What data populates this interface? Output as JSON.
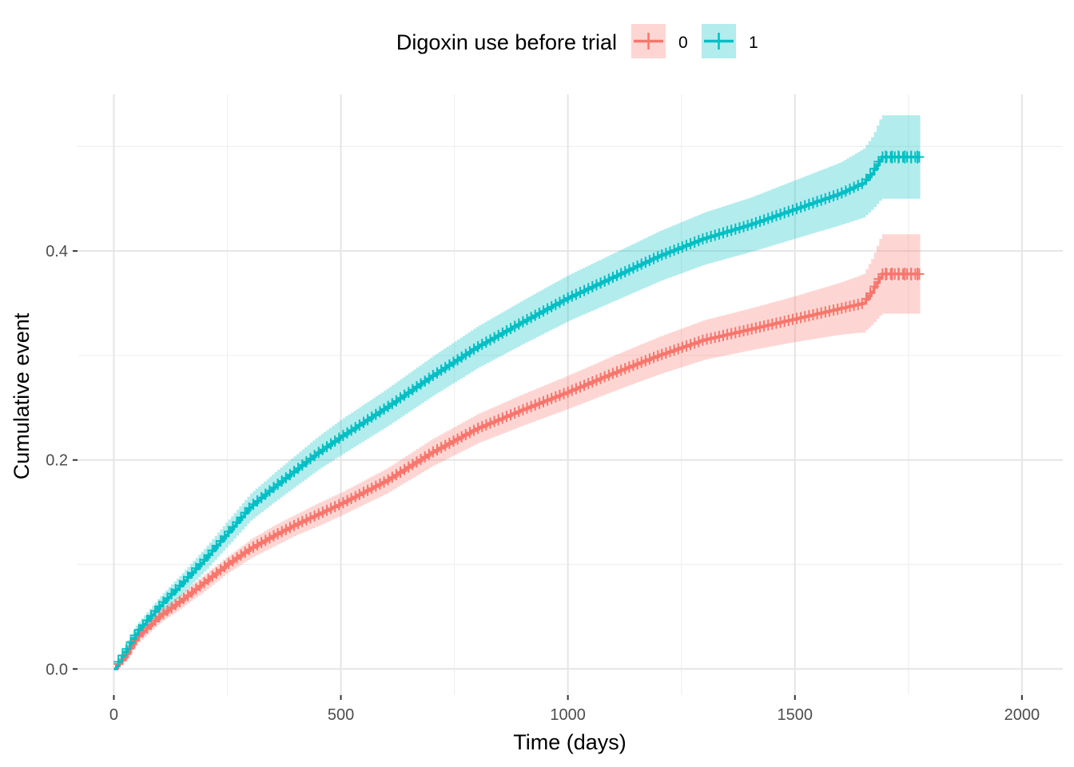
{
  "chart_data": {
    "type": "line",
    "subtype": "cumulative-incidence-step",
    "xlabel": "Time (days)",
    "ylabel": "Cumulative event",
    "xlim": [
      -80,
      2090
    ],
    "ylim": [
      -0.025,
      0.55
    ],
    "x_ticks": [
      0,
      500,
      1000,
      1500,
      2000
    ],
    "x_tick_labels": [
      "0",
      "500",
      "1000",
      "1500",
      "2000"
    ],
    "y_ticks": [
      0.0,
      0.2,
      0.4
    ],
    "y_tick_labels": [
      "0.0",
      "0.2",
      "0.4"
    ],
    "grid": true,
    "legend": {
      "title": "Digoxin use before trial",
      "position": "top",
      "entries": [
        "0",
        "1"
      ]
    },
    "series": [
      {
        "name": "0",
        "color": "#F8766D",
        "band_color": "#F8766D",
        "x": [
          0,
          25,
          50,
          100,
          150,
          200,
          250,
          300,
          350,
          400,
          450,
          500,
          600,
          700,
          800,
          900,
          1000,
          1100,
          1200,
          1300,
          1400,
          1500,
          1600,
          1650,
          1670,
          1690,
          1780
        ],
        "y": [
          0.0,
          0.012,
          0.03,
          0.05,
          0.066,
          0.083,
          0.1,
          0.115,
          0.127,
          0.138,
          0.148,
          0.158,
          0.18,
          0.207,
          0.23,
          0.248,
          0.265,
          0.283,
          0.3,
          0.315,
          0.325,
          0.335,
          0.345,
          0.35,
          0.362,
          0.378,
          0.378
        ],
        "lower": [
          0.0,
          0.007,
          0.024,
          0.044,
          0.059,
          0.075,
          0.092,
          0.106,
          0.117,
          0.128,
          0.137,
          0.147,
          0.168,
          0.194,
          0.216,
          0.233,
          0.249,
          0.266,
          0.282,
          0.296,
          0.305,
          0.313,
          0.32,
          0.322,
          0.33,
          0.34,
          0.34
        ],
        "upper": [
          0.0,
          0.017,
          0.036,
          0.056,
          0.073,
          0.091,
          0.108,
          0.124,
          0.137,
          0.148,
          0.159,
          0.169,
          0.192,
          0.22,
          0.244,
          0.263,
          0.281,
          0.3,
          0.318,
          0.334,
          0.345,
          0.357,
          0.37,
          0.378,
          0.394,
          0.416,
          0.416
        ]
      },
      {
        "name": "1",
        "color": "#00BFC4",
        "band_color": "#00BFC4",
        "x": [
          0,
          25,
          50,
          100,
          150,
          200,
          250,
          300,
          350,
          400,
          450,
          500,
          600,
          700,
          800,
          900,
          1000,
          1100,
          1200,
          1300,
          1400,
          1500,
          1600,
          1650,
          1670,
          1690,
          1780
        ],
        "y": [
          0.0,
          0.017,
          0.035,
          0.06,
          0.082,
          0.105,
          0.13,
          0.155,
          0.173,
          0.19,
          0.207,
          0.222,
          0.25,
          0.28,
          0.308,
          0.332,
          0.355,
          0.375,
          0.395,
          0.412,
          0.425,
          0.44,
          0.455,
          0.465,
          0.475,
          0.49,
          0.49
        ],
        "lower": [
          0.0,
          0.01,
          0.027,
          0.051,
          0.072,
          0.094,
          0.118,
          0.142,
          0.159,
          0.175,
          0.191,
          0.205,
          0.232,
          0.261,
          0.288,
          0.311,
          0.333,
          0.352,
          0.371,
          0.387,
          0.399,
          0.412,
          0.425,
          0.432,
          0.44,
          0.45,
          0.45
        ],
        "upper": [
          0.0,
          0.024,
          0.043,
          0.069,
          0.092,
          0.116,
          0.142,
          0.168,
          0.187,
          0.205,
          0.223,
          0.239,
          0.268,
          0.299,
          0.328,
          0.353,
          0.377,
          0.398,
          0.419,
          0.437,
          0.451,
          0.468,
          0.485,
          0.498,
          0.51,
          0.53,
          0.53
        ]
      }
    ]
  }
}
